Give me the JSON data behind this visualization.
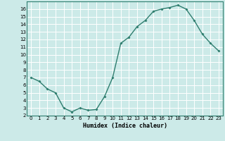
{
  "x": [
    0,
    1,
    2,
    3,
    4,
    5,
    6,
    7,
    8,
    9,
    10,
    11,
    12,
    13,
    14,
    15,
    16,
    17,
    18,
    19,
    20,
    21,
    22,
    23
  ],
  "y": [
    7.0,
    6.5,
    5.5,
    5.0,
    3.0,
    2.5,
    3.0,
    2.7,
    2.8,
    4.5,
    7.0,
    11.5,
    12.3,
    13.7,
    14.5,
    15.7,
    16.0,
    16.2,
    16.5,
    16.0,
    14.5,
    12.7,
    11.5,
    10.5
  ],
  "xlabel": "Humidex (Indice chaleur)",
  "line_color": "#2e7d6e",
  "marker": "D",
  "marker_size": 2,
  "bg_color": "#cceae8",
  "grid_color": "#aad4d2",
  "grid_white_color": "#ffffff",
  "xlim": [
    -0.5,
    23.5
  ],
  "ylim": [
    2,
    17
  ],
  "yticks": [
    2,
    3,
    4,
    5,
    6,
    7,
    8,
    9,
    10,
    11,
    12,
    13,
    14,
    15,
    16
  ],
  "xticks": [
    0,
    1,
    2,
    3,
    4,
    5,
    6,
    7,
    8,
    9,
    10,
    11,
    12,
    13,
    14,
    15,
    16,
    17,
    18,
    19,
    20,
    21,
    22,
    23
  ]
}
